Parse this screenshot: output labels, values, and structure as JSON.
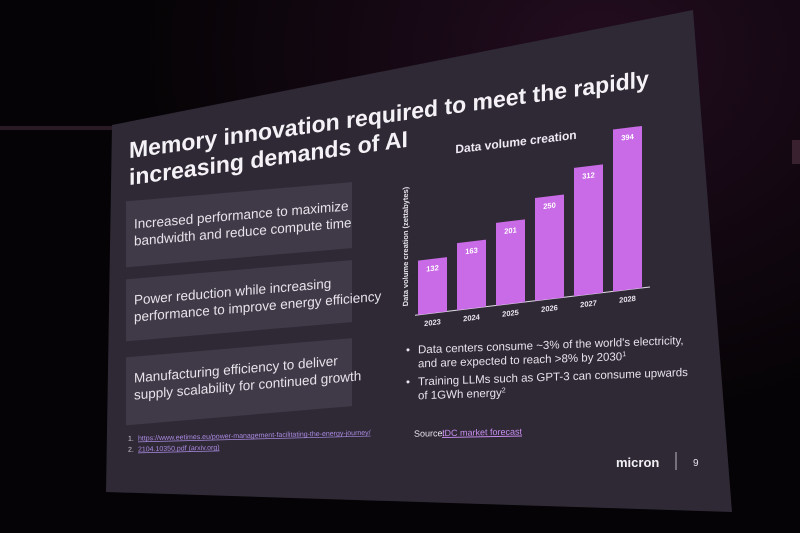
{
  "slide": {
    "title_line1": "Memory innovation required to meet the rapidly",
    "title_line2": "increasing demands of AI",
    "boxes": [
      {
        "line1": "Increased performance to maximize",
        "line2": "bandwidth and reduce compute time"
      },
      {
        "line1": "Power reduction while increasing",
        "line2": "performance to improve energy efficiency"
      },
      {
        "line1": "Manufacturing efficiency to deliver",
        "line2": "supply scalability for continued growth"
      }
    ],
    "bullets": [
      {
        "line1": "Data centers consume ~3% of the world's electricity,",
        "line2": "and are expected to reach >8% by 2030",
        "sup": "1"
      },
      {
        "line1": "Training LLMs such as GPT-3 can consume upwards",
        "line2": "of 1GWh energy",
        "sup": "2"
      }
    ],
    "source_label": "Source:",
    "source_link": "IDC market forecast",
    "references": [
      {
        "num": "1.",
        "text": "https://www.eetimes.eu/power-management-facilitating-the-energy-journey/"
      },
      {
        "num": "2.",
        "text": "2104.10350.pdf (arxiv.org)"
      }
    ],
    "logo": "micron",
    "page_number": "9",
    "bullet_glyph": "•"
  },
  "chart_data": {
    "type": "bar",
    "title": "Data volume creation",
    "ylabel": "Data volume creation (zettabytes)",
    "categories": [
      "2023",
      "2024",
      "2025",
      "2026",
      "2027",
      "2028"
    ],
    "values": [
      132,
      163,
      201,
      250,
      312,
      394
    ],
    "ylim": [
      0,
      394
    ],
    "bar_color": "#c96ae6"
  }
}
